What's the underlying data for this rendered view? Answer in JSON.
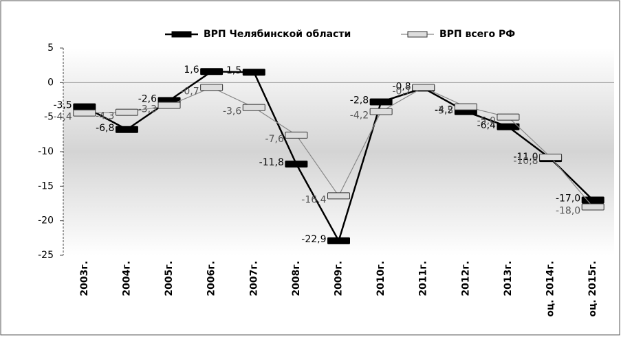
{
  "chart_data": {
    "type": "line",
    "categories": [
      "2003г.",
      "2004г.",
      "2005г.",
      "2006г.",
      "2007г.",
      "2008г.",
      "2009г.",
      "2010г.",
      "2011г.",
      "2012г.",
      "2013г.",
      "оц. 2014г.",
      "оц. 2015г."
    ],
    "series": [
      {
        "name": "ВРП Челябинской области",
        "color": "#000000",
        "values": [
          -3.5,
          -6.8,
          -2.6,
          1.6,
          1.5,
          -11.8,
          -22.9,
          -2.8,
          -0.8,
          -4.2,
          -6.4,
          -11.0,
          -17.0
        ],
        "value_labels": [
          "-3,5",
          "-6,8",
          "-2,6",
          "1,6",
          "1,5",
          "-11,8",
          "-22,9",
          "-2,8",
          "-0,8",
          "-4,2",
          "-6,4",
          "-11,0",
          "-17,0"
        ]
      },
      {
        "name": "ВРП всего РФ",
        "color": "#888888",
        "values": [
          -4.4,
          -4.3,
          -3.3,
          -0.7,
          -3.6,
          -7.6,
          -16.4,
          -4.2,
          -0.7,
          -3.5,
          -5.0,
          -10.8,
          -18.0
        ],
        "value_labels": [
          "-4,4",
          "-4,3",
          "-3,3",
          "-0,7",
          "-3,6",
          "-7,6",
          "-16,4",
          "-4,2",
          "-0,7",
          "-3,5",
          "-5,0",
          "-10,8",
          "-18,0"
        ]
      }
    ],
    "ylim": [
      -25,
      5
    ],
    "yticks": [
      -25,
      -20,
      -15,
      -10,
      -5,
      0,
      5
    ]
  }
}
